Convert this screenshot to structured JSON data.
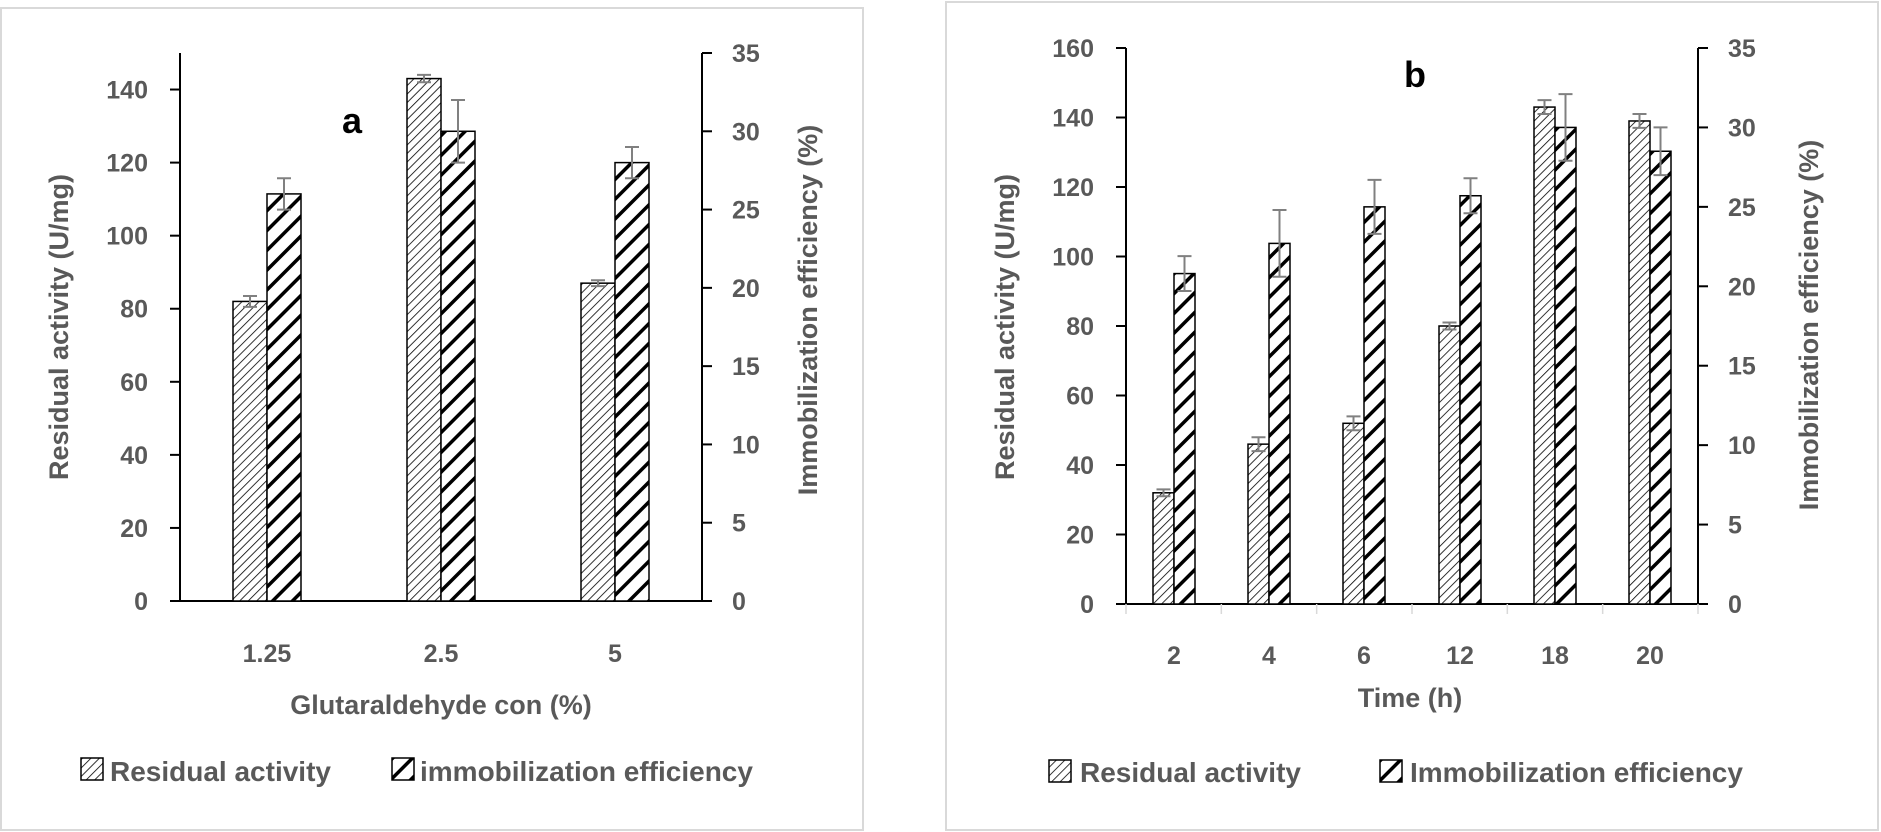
{
  "chart_data": [
    {
      "type": "bar",
      "panel_label": "a",
      "categories": [
        "1.25",
        "2.5",
        "5"
      ],
      "xlabel": "Glutaraldehyde con (%)",
      "ylabel": "Residual activity  (U/mg)",
      "y2label": "Immobilization efficiency (%)",
      "ylim": [
        0,
        150
      ],
      "yticks": [
        0,
        20,
        40,
        60,
        80,
        100,
        120,
        140
      ],
      "y2lim": [
        0,
        35
      ],
      "y2ticks": [
        0,
        5,
        10,
        15,
        20,
        25,
        30,
        35
      ],
      "series": [
        {
          "name": "Residual activity",
          "axis": "left",
          "pattern": "fine",
          "values": [
            82,
            143,
            87
          ],
          "errors": [
            1.5,
            1,
            0.8
          ]
        },
        {
          "name": "immobilization efficiency",
          "axis": "right",
          "pattern": "bold",
          "values": [
            26,
            30,
            28
          ],
          "errors": [
            1,
            2,
            1
          ]
        }
      ],
      "legend_position": "bottom"
    },
    {
      "type": "bar",
      "panel_label": "b",
      "categories": [
        "2",
        "4",
        "6",
        "12",
        "18",
        "20"
      ],
      "xlabel": "Time (h)",
      "ylabel": "Residual activity (U/mg)",
      "y2label": "Immobilization efficiency (%)",
      "ylim": [
        0,
        160
      ],
      "yticks": [
        0,
        20,
        40,
        60,
        80,
        100,
        120,
        140,
        160
      ],
      "y2lim": [
        0,
        35
      ],
      "y2ticks": [
        0,
        5,
        10,
        15,
        20,
        25,
        30,
        35
      ],
      "series": [
        {
          "name": "Residual activity",
          "axis": "left",
          "pattern": "fine",
          "values": [
            32,
            46,
            52,
            80,
            143,
            139
          ],
          "errors": [
            1,
            2,
            2,
            1,
            2,
            2
          ]
        },
        {
          "name": "Immobilization efficiency",
          "axis": "right",
          "pattern": "bold",
          "values": [
            20.8,
            22.7,
            25,
            25.7,
            30,
            28.5
          ],
          "errors": [
            1.1,
            2.1,
            1.7,
            1.1,
            2.1,
            1.5
          ]
        }
      ],
      "legend_position": "bottom"
    }
  ]
}
